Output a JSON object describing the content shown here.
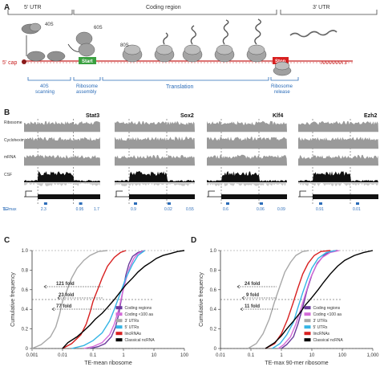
{
  "panel_a": {
    "label": "A",
    "utr5": "5’ UTR",
    "coding": "Coding region",
    "utr3": "3’ UTR",
    "cap": "5’ cap",
    "polyA": "AAAAAAA 3’",
    "s40": "40S",
    "s60": "60S",
    "s80": "80S",
    "start": "Start",
    "stop": "Stop",
    "phase_scanning": "40S\nscanning",
    "phase_assembly": "Ribosome\nassembly",
    "phase_translation": "Translation",
    "phase_release": "Ribosome\nrelease"
  },
  "panel_b": {
    "label": "B",
    "track_labels": [
      "Ribosome",
      "Cycloheximide",
      "mRNA",
      "CSF"
    ],
    "genes": [
      {
        "name": "Stat3",
        "te": [
          "1.2",
          "2.3",
          "0.95"
        ]
      },
      {
        "name": "Sox2",
        "te": [
          "1.7",
          "0.9",
          "0.02"
        ]
      },
      {
        "name": "Klf4",
        "te": [
          "0.55",
          "0.6",
          "0.06"
        ]
      },
      {
        "name": "Ezh2",
        "te": [
          "0.09",
          "0.91",
          "0.01"
        ]
      }
    ],
    "te_label": "TE-max"
  },
  "chart_data": [
    {
      "type": "line",
      "panel": "C",
      "xlabel": "TE-mean ribosome",
      "ylabel": "Cumulative frequency",
      "xscale": "log",
      "xlim": [
        0.001,
        100
      ],
      "ylim": [
        0,
        1.0
      ],
      "xticks": [
        "0.001",
        "0.01",
        "0.1",
        "1",
        "10",
        "100"
      ],
      "yticks": [
        "0",
        "0.2",
        "0.4",
        "0.6",
        "0.8",
        "1.0"
      ],
      "annotations": [
        "121 fold",
        "23 fold",
        "77 fold"
      ],
      "series": [
        {
          "name": "Coding regions",
          "color": "#6a3a9c",
          "x": [
            0.08,
            0.15,
            0.25,
            0.4,
            0.55,
            0.7,
            0.85,
            1.0,
            1.2,
            1.5,
            2,
            3,
            5
          ],
          "y": [
            0,
            0.02,
            0.05,
            0.12,
            0.22,
            0.35,
            0.5,
            0.62,
            0.75,
            0.86,
            0.94,
            0.98,
            1.0
          ]
        },
        {
          "name": "Coding <100 aa",
          "color": "#d36ad8",
          "x": [
            0.05,
            0.1,
            0.2,
            0.35,
            0.5,
            0.7,
            0.9,
            1.2,
            1.6,
            2.2,
            3,
            5
          ],
          "y": [
            0,
            0.02,
            0.06,
            0.14,
            0.25,
            0.4,
            0.55,
            0.7,
            0.83,
            0.92,
            0.97,
            1.0
          ]
        },
        {
          "name": "3’ UTRs",
          "color": "#a8a8a8",
          "x": [
            0.001,
            0.002,
            0.004,
            0.006,
            0.008,
            0.01,
            0.015,
            0.02,
            0.03,
            0.05,
            0.08,
            0.15,
            0.3
          ],
          "y": [
            0,
            0.04,
            0.12,
            0.22,
            0.35,
            0.48,
            0.62,
            0.72,
            0.82,
            0.9,
            0.95,
            0.99,
            1.0
          ]
        },
        {
          "name": "5’ UTRs",
          "color": "#35b5e5",
          "x": [
            0.02,
            0.05,
            0.1,
            0.2,
            0.35,
            0.5,
            0.8,
            1.2,
            2,
            3,
            5
          ],
          "y": [
            0,
            0.03,
            0.08,
            0.16,
            0.28,
            0.4,
            0.57,
            0.72,
            0.86,
            0.95,
            1.0
          ]
        },
        {
          "name": "lincRNAs",
          "color": "#d82020",
          "x": [
            0.01,
            0.02,
            0.04,
            0.06,
            0.08,
            0.1,
            0.15,
            0.2,
            0.3,
            0.5,
            0.8,
            1.2
          ],
          "y": [
            0,
            0.05,
            0.14,
            0.25,
            0.37,
            0.48,
            0.62,
            0.72,
            0.84,
            0.93,
            0.98,
            1.0
          ]
        },
        {
          "name": "Classical ncRNA",
          "color": "#000000",
          "x": [
            0.01,
            0.015,
            0.03,
            0.05,
            0.08,
            0.12,
            0.2,
            0.3,
            0.5,
            0.8,
            1.2,
            2,
            3,
            5,
            8,
            12,
            20,
            35,
            60,
            100
          ],
          "y": [
            0,
            0.06,
            0.12,
            0.18,
            0.24,
            0.3,
            0.36,
            0.42,
            0.5,
            0.58,
            0.65,
            0.72,
            0.78,
            0.84,
            0.88,
            0.92,
            0.95,
            0.97,
            0.99,
            1.0
          ]
        }
      ]
    },
    {
      "type": "line",
      "panel": "D",
      "xlabel": "TE-max 90-mer ribosome",
      "ylabel": "Cumulative frequency",
      "xscale": "log",
      "xlim": [
        0.01,
        1000
      ],
      "ylim": [
        0,
        1.0
      ],
      "xticks": [
        "0.01",
        "0.1",
        "1",
        "10",
        "100",
        "1,000"
      ],
      "yticks": [
        "0",
        "0.2",
        "0.4",
        "0.6",
        "0.8",
        "1.0"
      ],
      "annotations": [
        "24 fold",
        "9 fold",
        "11 fold"
      ],
      "series": [
        {
          "name": "Coding regions",
          "color": "#6a3a9c",
          "x": [
            1,
            1.5,
            2.5,
            3.5,
            5,
            7,
            10,
            15,
            25,
            40,
            70
          ],
          "y": [
            0,
            0.04,
            0.12,
            0.25,
            0.42,
            0.6,
            0.75,
            0.87,
            0.95,
            0.99,
            1.0
          ]
        },
        {
          "name": "Coding <100 aa",
          "color": "#d36ad8",
          "x": [
            0.8,
            1.2,
            2,
            3,
            4.5,
            6.5,
            9,
            14,
            22,
            40,
            80
          ],
          "y": [
            0,
            0.04,
            0.12,
            0.25,
            0.42,
            0.58,
            0.72,
            0.85,
            0.93,
            0.98,
            1.0
          ]
        },
        {
          "name": "3’ UTRs",
          "color": "#a8a8a8",
          "x": [
            0.08,
            0.15,
            0.25,
            0.4,
            0.6,
            0.9,
            1.3,
            2,
            3,
            5,
            8
          ],
          "y": [
            0,
            0.05,
            0.15,
            0.3,
            0.48,
            0.64,
            0.78,
            0.88,
            0.95,
            0.99,
            1.0
          ]
        },
        {
          "name": "5’ UTRs",
          "color": "#35b5e5",
          "x": [
            0.5,
            0.9,
            1.5,
            2.5,
            3.5,
            5,
            7,
            10,
            16,
            30,
            60
          ],
          "y": [
            0,
            0.05,
            0.14,
            0.27,
            0.42,
            0.57,
            0.7,
            0.82,
            0.92,
            0.98,
            1.0
          ]
        },
        {
          "name": "lincRNAs",
          "color": "#d82020",
          "x": [
            0.3,
            0.6,
            1,
            1.6,
            2.4,
            3.5,
            5,
            7.5,
            12,
            20,
            40
          ],
          "y": [
            0,
            0.05,
            0.15,
            0.3,
            0.46,
            0.62,
            0.76,
            0.87,
            0.95,
            0.99,
            1.0
          ]
        },
        {
          "name": "Classical ncRNA",
          "color": "#000000",
          "x": [
            0.3,
            0.6,
            1,
            1.5,
            2.5,
            4,
            6,
            10,
            16,
            25,
            40,
            70,
            120,
            250,
            500,
            1000
          ],
          "y": [
            0,
            0.06,
            0.13,
            0.2,
            0.28,
            0.36,
            0.44,
            0.52,
            0.6,
            0.68,
            0.76,
            0.84,
            0.9,
            0.95,
            0.98,
            1.0
          ]
        }
      ]
    }
  ]
}
